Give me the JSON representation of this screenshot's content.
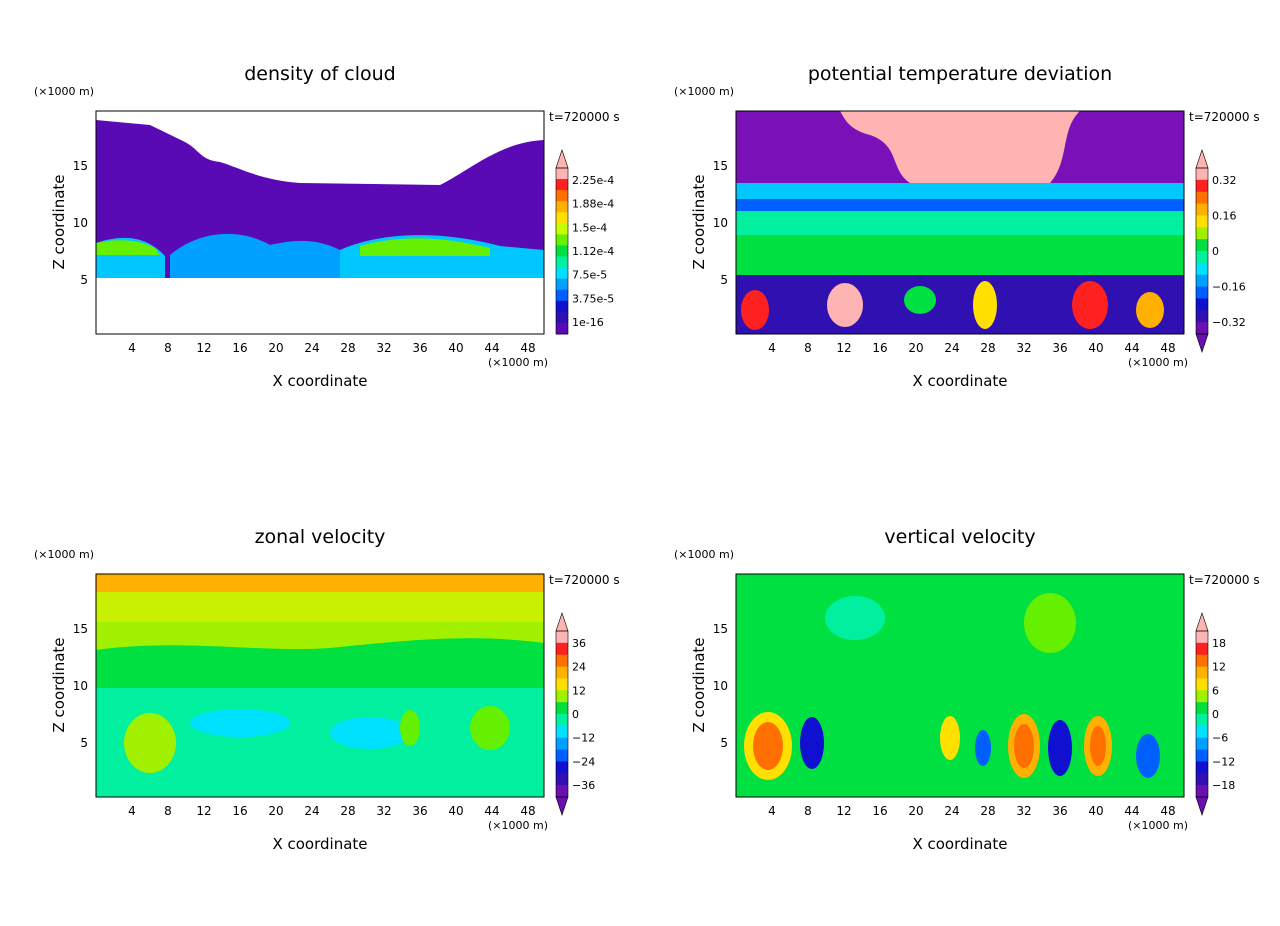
{
  "chart_data": [
    {
      "type": "heatmap",
      "title": "density of cloud",
      "xlabel": "X coordinate",
      "ylabel": "Z coordinate",
      "x_unit": "(×1000 m)",
      "y_unit": "(×1000 m)",
      "time_label": "t=720000 s",
      "xlim": [
        0,
        50
      ],
      "ylim": [
        0,
        19.5
      ],
      "x_ticks": [
        "4",
        "8",
        "12",
        "16",
        "20",
        "24",
        "28",
        "32",
        "36",
        "40",
        "44",
        "48"
      ],
      "y_ticks": [
        "5",
        "10",
        "15"
      ],
      "colorbar": {
        "labels": [
          "2.25e-4",
          "1.88e-4",
          "1.5e-4",
          "1.12e-4",
          "7.5e-5",
          "3.75e-5",
          "1e-16"
        ],
        "colors": [
          "#ffb4b4",
          "#ff2020",
          "#ff7000",
          "#ffb000",
          "#ffe000",
          "#c8ff00",
          "#64f000",
          "#00e040",
          "#00f0a0",
          "#00e0ff",
          "#00a0ff",
          "#0060ff",
          "#1010d0",
          "#3010b0",
          "#5a0ab4"
        ],
        "triangle_top": true,
        "triangle_bottom": false
      }
    },
    {
      "type": "heatmap",
      "title": "potential temperature deviation",
      "xlabel": "X coordinate",
      "ylabel": "Z coordinate",
      "x_unit": "(×1000 m)",
      "y_unit": "(×1000 m)",
      "time_label": "t=720000 s",
      "xlim": [
        0,
        50
      ],
      "ylim": [
        0,
        19.5
      ],
      "x_ticks": [
        "4",
        "8",
        "12",
        "16",
        "20",
        "24",
        "28",
        "32",
        "36",
        "40",
        "44",
        "48"
      ],
      "y_ticks": [
        "5",
        "10",
        "15"
      ],
      "colorbar": {
        "labels": [
          "0.32",
          "0.16",
          "0",
          "−0.16",
          "−0.32"
        ],
        "colors": [
          "#ffb4b4",
          "#ff2020",
          "#ff7000",
          "#ffb000",
          "#ffe000",
          "#a0f000",
          "#00e040",
          "#00f0a0",
          "#00e0ff",
          "#00a0ff",
          "#0060ff",
          "#1010d0",
          "#3010b0",
          "#6a10b0"
        ],
        "triangle_top": true,
        "triangle_bottom": true
      }
    },
    {
      "type": "heatmap",
      "title": "zonal velocity",
      "xlabel": "X coordinate",
      "ylabel": "Z coordinate",
      "x_unit": "(×1000 m)",
      "y_unit": "(×1000 m)",
      "time_label": "t=720000 s",
      "xlim": [
        0,
        50
      ],
      "ylim": [
        0,
        19.5
      ],
      "x_ticks": [
        "4",
        "8",
        "12",
        "16",
        "20",
        "24",
        "28",
        "32",
        "36",
        "40",
        "44",
        "48"
      ],
      "y_ticks": [
        "5",
        "10",
        "15"
      ],
      "colorbar": {
        "labels": [
          "36",
          "24",
          "12",
          "0",
          "−12",
          "−24",
          "−36"
        ],
        "colors": [
          "#ffb4b4",
          "#ff2020",
          "#ff7000",
          "#ffb000",
          "#ffe000",
          "#a0f000",
          "#00e040",
          "#00f0a0",
          "#00e0ff",
          "#00a0ff",
          "#0060ff",
          "#1010d0",
          "#3010b0",
          "#6a10b0"
        ],
        "triangle_top": true,
        "triangle_bottom": true
      }
    },
    {
      "type": "heatmap",
      "title": "vertical velocity",
      "xlabel": "X coordinate",
      "ylabel": "Z coordinate",
      "x_unit": "(×1000 m)",
      "y_unit": "(×1000 m)",
      "time_label": "t=720000 s",
      "xlim": [
        0,
        50
      ],
      "ylim": [
        0,
        19.5
      ],
      "x_ticks": [
        "4",
        "8",
        "12",
        "16",
        "20",
        "24",
        "28",
        "32",
        "36",
        "40",
        "44",
        "48"
      ],
      "y_ticks": [
        "5",
        "10",
        "15"
      ],
      "colorbar": {
        "labels": [
          "18",
          "12",
          "6",
          "0",
          "−6",
          "−12",
          "−18"
        ],
        "colors": [
          "#ffb4b4",
          "#ff2020",
          "#ff7000",
          "#ffb000",
          "#ffe000",
          "#a0f000",
          "#00e040",
          "#00f0a0",
          "#00e0ff",
          "#00a0ff",
          "#0060ff",
          "#1010d0",
          "#3010b0",
          "#6a10b0"
        ],
        "triangle_top": true,
        "triangle_bottom": true
      }
    }
  ]
}
